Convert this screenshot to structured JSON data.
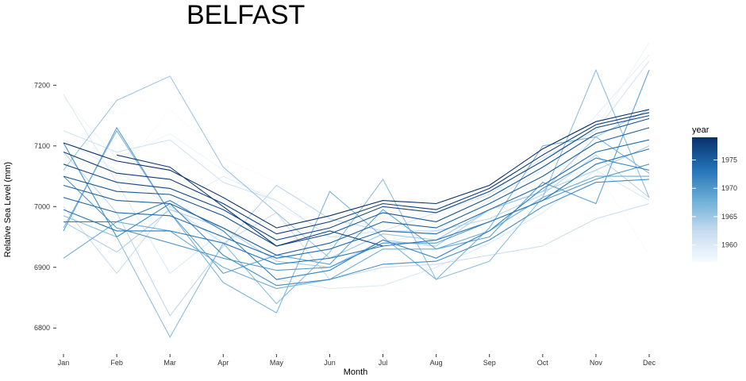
{
  "chart_data": {
    "type": "line",
    "title": "BELFAST",
    "xlabel": "Month",
    "ylabel": "Relative Sea Level (mm)",
    "categories": [
      "Jan",
      "Feb",
      "Mar",
      "Apr",
      "May",
      "Jun",
      "Jul",
      "Aug",
      "Sep",
      "Oct",
      "Nov",
      "Dec"
    ],
    "ylim": [
      6765,
      7275
    ],
    "yticks": [
      6800,
      6900,
      7000,
      7100,
      7200
    ],
    "grid": false,
    "legend": {
      "title": "year",
      "placement": "right",
      "ticks": [
        1960,
        1965,
        1970,
        1975
      ],
      "range": [
        1957,
        1979
      ],
      "color_low": "#f7fbff",
      "color_high": "#08306b"
    },
    "series": [
      {
        "year": 1957,
        "values": [
          7130,
          7050,
          7160,
          7080,
          7040,
          6990,
          6960,
          6950,
          6990,
          7030,
          7060,
          6920
        ]
      },
      {
        "year": 1958,
        "values": [
          7180,
          7080,
          7120,
          7060,
          7000,
          6960,
          6980,
          6990,
          7040,
          7000,
          7130,
          7270
        ]
      },
      {
        "year": 1959,
        "values": [
          7110,
          7060,
          7000,
          7050,
          7010,
          6950,
          6940,
          6960,
          7010,
          7060,
          7150,
          7250
        ]
      },
      {
        "year": 1960,
        "values": [
          7185,
          7040,
          6890,
          6960,
          6880,
          6865,
          6870,
          6900,
          6940,
          6990,
          7060,
          7010
        ]
      },
      {
        "year": 1961,
        "values": [
          7125,
          7090,
          7110,
          7040,
          7010,
          6950,
          6960,
          6990,
          7020,
          7080,
          7125,
          7240
        ]
      },
      {
        "year": 1962,
        "values": [
          7000,
          6890,
          7000,
          6940,
          6990,
          6880,
          6900,
          6905,
          6920,
          6935,
          6980,
          7005
        ]
      },
      {
        "year": 1963,
        "values": [
          7090,
          6990,
          6820,
          6935,
          7035,
          6980,
          6960,
          6960,
          6980,
          7020,
          7085,
          7015
        ]
      },
      {
        "year": 1964,
        "values": [
          6975,
          6925,
          6995,
          6965,
          6910,
          6900,
          6945,
          6935,
          6995,
          7025,
          7060,
          7100
        ]
      },
      {
        "year": 1965,
        "values": [
          7060,
          7175,
          7215,
          7065,
          6990,
          6915,
          6955,
          6945,
          6995,
          7025,
          7115,
          7160
        ]
      },
      {
        "year": 1966,
        "values": [
          6985,
          6950,
          6785,
          6940,
          6840,
          6925,
          7045,
          6880,
          6910,
          7015,
          7225,
          7015
        ]
      },
      {
        "year": 1967,
        "values": [
          6965,
          7125,
          6990,
          6875,
          6825,
          7025,
          6950,
          6880,
          6965,
          7100,
          7115,
          7055
        ]
      },
      {
        "year": 1968,
        "values": [
          6915,
          6975,
          6960,
          6900,
          6865,
          6880,
          6930,
          6930,
          6960,
          7015,
          7050,
          7050
        ]
      },
      {
        "year": 1969,
        "values": [
          6960,
          7130,
          6990,
          6890,
          6920,
          6905,
          6995,
          6930,
          6950,
          7040,
          7005,
          7225
        ]
      },
      {
        "year": 1970,
        "values": [
          7050,
          6965,
          6940,
          6915,
          6895,
          6900,
          6940,
          6940,
          6975,
          7010,
          7045,
          7070
        ]
      },
      {
        "year": 1971,
        "values": [
          7105,
          6950,
          7005,
          6920,
          6870,
          6880,
          6905,
          6910,
          6945,
          7000,
          7040,
          7045
        ]
      },
      {
        "year": 1972,
        "values": [
          6975,
          6975,
          7010,
          6960,
          6880,
          6895,
          6945,
          6915,
          6960,
          7030,
          7080,
          7060
        ]
      },
      {
        "year": 1973,
        "values": [
          6995,
          6960,
          6960,
          6940,
          6905,
          6915,
          6935,
          6945,
          6975,
          7010,
          7070,
          7095
        ]
      },
      {
        "year": 1974,
        "values": [
          7015,
          6990,
          6985,
          6950,
          6915,
          6930,
          6960,
          6955,
          6995,
          7035,
          7090,
          7110
        ]
      },
      {
        "year": 1975,
        "values": [
          7035,
          7010,
          7005,
          6965,
          6920,
          6940,
          6975,
          6965,
          7005,
          7050,
          7105,
          7130
        ]
      },
      {
        "year": 1976,
        "values": [
          7050,
          7025,
          7020,
          6985,
          6935,
          6955,
          6990,
          6975,
          7015,
          7065,
          7120,
          7145
        ]
      },
      {
        "year": 1977,
        "values": [
          7070,
          7040,
          7030,
          6995,
          6945,
          6965,
          7000,
          6990,
          7025,
          7075,
          7130,
          7150
        ]
      },
      {
        "year": 1978,
        "values": [
          7090,
          7055,
          7045,
          7005,
          6955,
          6975,
          7005,
          6995,
          7030,
          7085,
          7135,
          7155
        ]
      },
      {
        "year": 1979,
        "values": [
          7105,
          7075,
          7060,
          7015,
          6965,
          6985,
          7010,
          7005,
          7035,
          7095,
          7140,
          7160
        ]
      },
      {
        "year": 1978,
        "values": [
          null,
          7085,
          7065,
          7000,
          6935,
          6960,
          6935,
          null,
          null,
          null,
          null,
          null
        ]
      }
    ]
  }
}
